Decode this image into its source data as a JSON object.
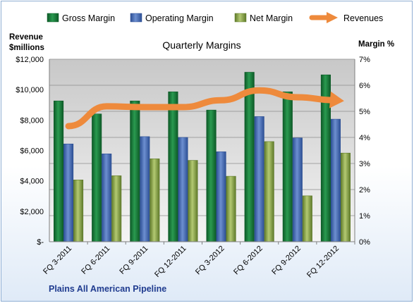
{
  "chart_data": {
    "type": "bar",
    "title": "Quarterly Margins",
    "left_axis_label_line1": "Revenue",
    "left_axis_label_line2": "$millions",
    "right_axis_label": "Margin %",
    "footer": "Plains All American Pipeline",
    "categories": [
      "FQ 3-2011",
      "FQ 6-2011",
      "FQ 9-2011",
      "FQ 12-2011",
      "FQ 3-2012",
      "FQ 6-2012",
      "FQ 9-2012",
      "FQ 12-2012"
    ],
    "left_ticks": [
      "$-",
      "$2,000",
      "$4,000",
      "$6,000",
      "$8,000",
      "$10,000",
      "$12,000"
    ],
    "right_ticks": [
      "0%",
      "1%",
      "2%",
      "3%",
      "4%",
      "5%",
      "6%",
      "7%"
    ],
    "ylim_left": [
      0,
      12000
    ],
    "ylim_right": [
      0,
      7
    ],
    "series": [
      {
        "name": "Gross Margin",
        "kind": "bar",
        "axis": "right",
        "color": "#1a7a3c",
        "values": [
          5.4,
          4.9,
          5.4,
          5.75,
          5.05,
          6.5,
          5.75,
          6.4
        ]
      },
      {
        "name": "Operating Margin",
        "kind": "bar",
        "axis": "right",
        "color": "#4a6fb8",
        "values": [
          3.75,
          3.37,
          4.03,
          4.0,
          3.45,
          4.8,
          3.98,
          4.7
        ]
      },
      {
        "name": "Net Margin",
        "kind": "bar",
        "axis": "right",
        "color": "#8faa4a",
        "values": [
          2.37,
          2.53,
          3.18,
          3.12,
          2.51,
          3.84,
          1.76,
          3.4
        ]
      },
      {
        "name": "Revenues",
        "kind": "arrow-line",
        "axis": "left",
        "color": "#ee8a3c",
        "values": [
          7600,
          8900,
          8850,
          8850,
          9300,
          9950,
          9500,
          9300
        ]
      }
    ],
    "grid": true,
    "legend_position": "top"
  }
}
